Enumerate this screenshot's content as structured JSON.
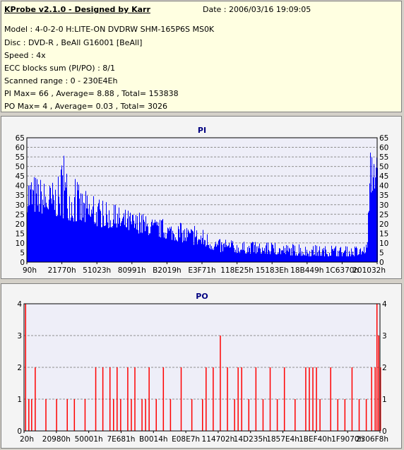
{
  "header": {
    "title": "KProbe v2.1.0 - Designed by Karr",
    "date": "Date : 2006/03/16 19:09:05",
    "lines": [
      "Model : 4-0-2-0 H:LITE-ON DVDRW SHM-165P6S MS0K",
      "Disc : DVD-R , BeAll G16001 [BeAll]",
      "Speed : 4x",
      "ECC blocks sum (PI/PO) : 8/1",
      "Scanned range : 0 - 230E4Eh",
      "PI Max= 66 , Average= 8.88 , Total= 153838",
      "PO Max= 4 , Average= 0.03 , Total= 3026"
    ]
  },
  "colors": {
    "pi": "#0000ff",
    "po": "#ff0000",
    "title": "#000080",
    "plot_bg": "#eeeef8"
  },
  "chart_data": [
    {
      "type": "bar",
      "title": "PI",
      "ylim": [
        0,
        65
      ],
      "yticks": [
        "0",
        "5",
        "10",
        "15",
        "20",
        "25",
        "30",
        "35",
        "40",
        "45",
        "50",
        "55",
        "60",
        "65"
      ],
      "xticks": [
        "90h",
        "21770h",
        "51023h",
        "80991h",
        "B2019h",
        "E3F71h",
        "118E25h",
        "15183Eh",
        "18B449h",
        "1C6370h",
        "201032h"
      ],
      "grid": true,
      "envelope": [
        [
          0,
          50
        ],
        [
          0.01,
          48
        ],
        [
          0.03,
          46
        ],
        [
          0.06,
          42
        ],
        [
          0.09,
          45
        ],
        [
          0.1,
          58
        ],
        [
          0.12,
          48
        ],
        [
          0.15,
          40
        ],
        [
          0.2,
          33
        ],
        [
          0.25,
          30
        ],
        [
          0.3,
          27
        ],
        [
          0.35,
          24
        ],
        [
          0.45,
          20
        ],
        [
          0.5,
          18
        ],
        [
          0.55,
          12
        ],
        [
          0.6,
          11
        ],
        [
          0.7,
          10
        ],
        [
          0.8,
          9
        ],
        [
          0.95,
          8
        ],
        [
          0.97,
          10
        ],
        [
          0.98,
          58
        ],
        [
          0.99,
          65
        ],
        [
          1.0,
          55
        ]
      ],
      "base": [
        [
          0,
          26
        ],
        [
          0.05,
          25
        ],
        [
          0.1,
          23
        ],
        [
          0.15,
          20
        ],
        [
          0.25,
          17
        ],
        [
          0.35,
          14
        ],
        [
          0.45,
          10
        ],
        [
          0.5,
          8
        ],
        [
          0.55,
          5
        ],
        [
          0.7,
          4
        ],
        [
          0.8,
          3
        ],
        [
          0.95,
          3
        ],
        [
          0.97,
          5
        ],
        [
          0.98,
          35
        ],
        [
          1.0,
          40
        ]
      ]
    },
    {
      "type": "bar",
      "title": "PO",
      "ylim": [
        0,
        4
      ],
      "yticks": [
        "0",
        "1",
        "2",
        "3",
        "4"
      ],
      "xticks": [
        "20h",
        "20980h",
        "50001h",
        "7E681h",
        "B0014h",
        "E08E7h",
        "114702h",
        "14D235h",
        "1857E4h",
        "1BEF40h",
        "1F9070h",
        "2306F8h"
      ],
      "grid": true,
      "spikes": [
        [
          0.003,
          4
        ],
        [
          0.012,
          1
        ],
        [
          0.02,
          1
        ],
        [
          0.03,
          2
        ],
        [
          0.06,
          1
        ],
        [
          0.09,
          1
        ],
        [
          0.12,
          1
        ],
        [
          0.14,
          1
        ],
        [
          0.17,
          1
        ],
        [
          0.2,
          2
        ],
        [
          0.22,
          2
        ],
        [
          0.24,
          2
        ],
        [
          0.25,
          1
        ],
        [
          0.26,
          2
        ],
        [
          0.27,
          1
        ],
        [
          0.29,
          2
        ],
        [
          0.3,
          1
        ],
        [
          0.31,
          2
        ],
        [
          0.33,
          1
        ],
        [
          0.34,
          1
        ],
        [
          0.35,
          2
        ],
        [
          0.37,
          1
        ],
        [
          0.39,
          2
        ],
        [
          0.41,
          1
        ],
        [
          0.44,
          2
        ],
        [
          0.47,
          1
        ],
        [
          0.5,
          1
        ],
        [
          0.51,
          2
        ],
        [
          0.53,
          2
        ],
        [
          0.55,
          3
        ],
        [
          0.57,
          2
        ],
        [
          0.59,
          1
        ],
        [
          0.6,
          2
        ],
        [
          0.61,
          2
        ],
        [
          0.63,
          1
        ],
        [
          0.65,
          2
        ],
        [
          0.67,
          1
        ],
        [
          0.69,
          2
        ],
        [
          0.71,
          1
        ],
        [
          0.73,
          2
        ],
        [
          0.76,
          1
        ],
        [
          0.79,
          2
        ],
        [
          0.8,
          2
        ],
        [
          0.81,
          2
        ],
        [
          0.82,
          2
        ],
        [
          0.83,
          1
        ],
        [
          0.86,
          2
        ],
        [
          0.88,
          1
        ],
        [
          0.9,
          1
        ],
        [
          0.92,
          2
        ],
        [
          0.94,
          1
        ],
        [
          0.96,
          1
        ],
        [
          0.975,
          2
        ],
        [
          0.985,
          2
        ],
        [
          0.99,
          4
        ],
        [
          0.995,
          3
        ],
        [
          1.0,
          2
        ]
      ]
    }
  ]
}
